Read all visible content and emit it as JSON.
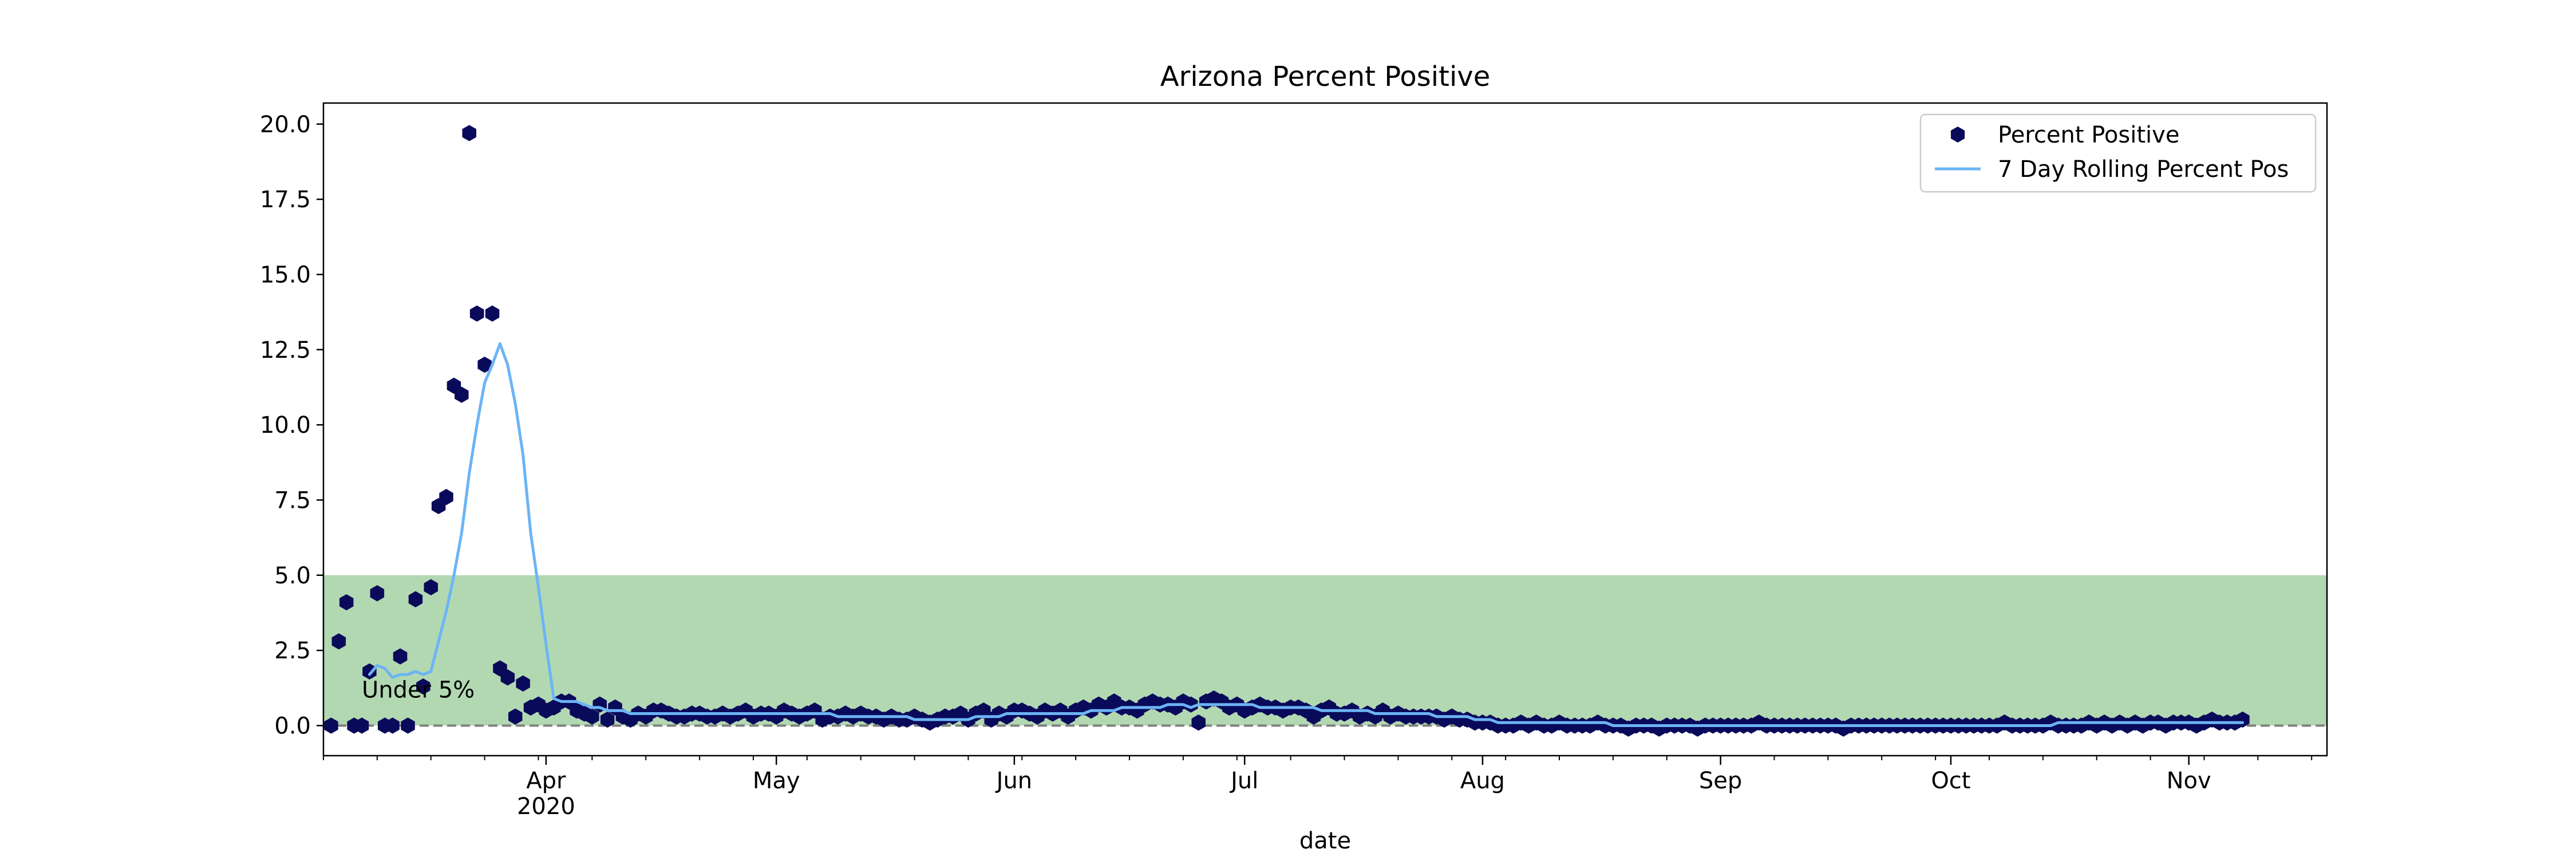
{
  "chart_data": {
    "type": "scatter",
    "title": "Arizona Percent Positive",
    "xlabel": "date",
    "ylabel": "",
    "xlim": [
      "2020-03-03",
      "2020-11-19"
    ],
    "ylim": [
      -1.0,
      20.7
    ],
    "grid": false,
    "legend_position": "top-right",
    "x_ticks": [
      {
        "date": "2020-04-01",
        "label": "Apr",
        "sublabel": "2020"
      },
      {
        "date": "2020-05-01",
        "label": "May"
      },
      {
        "date": "2020-06-01",
        "label": "Jun"
      },
      {
        "date": "2020-07-01",
        "label": "Jul"
      },
      {
        "date": "2020-08-01",
        "label": "Aug"
      },
      {
        "date": "2020-09-01",
        "label": "Sep"
      },
      {
        "date": "2020-10-01",
        "label": "Oct"
      },
      {
        "date": "2020-11-01",
        "label": "Nov"
      }
    ],
    "y_ticks": [
      0.0,
      2.5,
      5.0,
      7.5,
      10.0,
      12.5,
      15.0,
      17.5,
      20.0
    ],
    "y_tick_labels": [
      "0.0",
      "2.5",
      "5.0",
      "7.5",
      "10.0",
      "12.5",
      "15.0",
      "17.5",
      "20.0"
    ],
    "band": {
      "y_from": 0,
      "y_to": 5,
      "color": "#b2d8b2",
      "label": "Under 5%",
      "label_date": "2020-03-08",
      "label_y": 1.2
    },
    "reference_line": {
      "y": 0,
      "color": "#808080",
      "style": "dashed"
    },
    "series": [
      {
        "name": "Percent Positive",
        "kind": "scatter",
        "color": "#0a0a5a",
        "marker": "hexagon",
        "x_start": "2020-03-04",
        "step_days": 1,
        "values": [
          0.0,
          2.8,
          4.1,
          0.0,
          0.0,
          1.8,
          4.4,
          0.0,
          0.0,
          2.3,
          0.0,
          4.2,
          1.3,
          4.6,
          7.3,
          7.6,
          11.3,
          11.0,
          19.7,
          13.7,
          12.0,
          13.7,
          1.9,
          1.6,
          0.3,
          1.4,
          0.6,
          0.7,
          0.5,
          0.6,
          0.8,
          0.8,
          0.5,
          0.4,
          0.3,
          0.7,
          0.2,
          0.6,
          0.3,
          0.2,
          0.4,
          0.3,
          0.5,
          0.5,
          0.4,
          0.3,
          0.3,
          0.4,
          0.4,
          0.3,
          0.3,
          0.4,
          0.3,
          0.4,
          0.5,
          0.3,
          0.4,
          0.4,
          0.3,
          0.5,
          0.4,
          0.3,
          0.4,
          0.5,
          0.2,
          0.3,
          0.3,
          0.4,
          0.3,
          0.4,
          0.3,
          0.3,
          0.2,
          0.3,
          0.2,
          0.2,
          0.3,
          0.2,
          0.1,
          0.2,
          0.3,
          0.3,
          0.4,
          0.2,
          0.4,
          0.5,
          0.2,
          0.4,
          0.3,
          0.5,
          0.5,
          0.4,
          0.3,
          0.5,
          0.4,
          0.5,
          0.3,
          0.5,
          0.6,
          0.5,
          0.7,
          0.6,
          0.8,
          0.6,
          0.6,
          0.5,
          0.7,
          0.8,
          0.7,
          0.7,
          0.6,
          0.8,
          0.7,
          0.1,
          0.8,
          0.9,
          0.8,
          0.6,
          0.7,
          0.5,
          0.6,
          0.7,
          0.6,
          0.6,
          0.5,
          0.6,
          0.6,
          0.5,
          0.3,
          0.5,
          0.6,
          0.4,
          0.4,
          0.5,
          0.3,
          0.4,
          0.3,
          0.5,
          0.3,
          0.4,
          0.3,
          0.3,
          0.3,
          0.3,
          0.3,
          0.2,
          0.3,
          0.2,
          0.2,
          0.1,
          0.1,
          0.1,
          0.0,
          0.0,
          0.0,
          0.1,
          0.0,
          0.1,
          0.0,
          0.0,
          0.1,
          0.0,
          0.0,
          0.0,
          0.0,
          0.1,
          0.0,
          0.0,
          0.0,
          -0.1,
          0.0,
          0.0,
          0.0,
          -0.1,
          0.0,
          0.0,
          0.0,
          0.0,
          -0.1,
          0.0,
          0.0,
          0.0,
          0.0,
          0.0,
          0.0,
          0.0,
          0.1,
          0.0,
          0.0,
          0.0,
          0.0,
          0.0,
          0.0,
          0.0,
          0.0,
          0.0,
          0.0,
          -0.1,
          0.0,
          0.0,
          0.0,
          0.0,
          0.0,
          0.0,
          0.0,
          0.0,
          0.0,
          0.0,
          0.0,
          0.0,
          0.0,
          0.0,
          0.0,
          0.0,
          0.0,
          0.0,
          0.0,
          0.0,
          0.1,
          0.0,
          0.0,
          0.0,
          0.0,
          0.0,
          0.1,
          0.0,
          0.0,
          0.0,
          0.0,
          0.1,
          0.0,
          0.1,
          0.0,
          0.1,
          0.0,
          0.1,
          0.0,
          0.1,
          0.1,
          0.0,
          0.1,
          0.1,
          0.1,
          0.0,
          0.1,
          0.2,
          0.1,
          0.1,
          0.1,
          0.2
        ]
      },
      {
        "name": "7 Day Rolling Percent Pos",
        "kind": "line",
        "color": "#6cb4f5",
        "x_start": "2020-03-09",
        "step_days": 1,
        "values": [
          1.7,
          2.0,
          1.9,
          1.6,
          1.7,
          1.7,
          1.8,
          1.7,
          1.8,
          2.8,
          3.8,
          5.0,
          6.4,
          8.4,
          10.0,
          11.4,
          12.0,
          12.7,
          12.0,
          10.7,
          9.0,
          6.4,
          4.6,
          2.7,
          0.9,
          0.8,
          0.8,
          0.8,
          0.7,
          0.6,
          0.6,
          0.5,
          0.5,
          0.5,
          0.4,
          0.4,
          0.4,
          0.4,
          0.4,
          0.4,
          0.4,
          0.4,
          0.4,
          0.4,
          0.4,
          0.4,
          0.4,
          0.4,
          0.4,
          0.4,
          0.4,
          0.4,
          0.4,
          0.4,
          0.4,
          0.4,
          0.4,
          0.4,
          0.4,
          0.4,
          0.4,
          0.3,
          0.3,
          0.3,
          0.3,
          0.3,
          0.3,
          0.3,
          0.3,
          0.3,
          0.3,
          0.2,
          0.2,
          0.2,
          0.2,
          0.2,
          0.2,
          0.2,
          0.2,
          0.3,
          0.3,
          0.3,
          0.3,
          0.4,
          0.4,
          0.4,
          0.4,
          0.4,
          0.4,
          0.4,
          0.4,
          0.4,
          0.4,
          0.4,
          0.5,
          0.5,
          0.5,
          0.5,
          0.6,
          0.6,
          0.6,
          0.6,
          0.6,
          0.6,
          0.7,
          0.7,
          0.7,
          0.6,
          0.7,
          0.7,
          0.7,
          0.7,
          0.7,
          0.7,
          0.7,
          0.7,
          0.6,
          0.6,
          0.6,
          0.6,
          0.6,
          0.6,
          0.6,
          0.6,
          0.5,
          0.5,
          0.5,
          0.5,
          0.5,
          0.5,
          0.5,
          0.4,
          0.4,
          0.4,
          0.4,
          0.4,
          0.4,
          0.4,
          0.4,
          0.3,
          0.3,
          0.3,
          0.3,
          0.3,
          0.2,
          0.2,
          0.2,
          0.1,
          0.1,
          0.1,
          0.1,
          0.1,
          0.1,
          0.1,
          0.1,
          0.1,
          0.1,
          0.1,
          0.1,
          0.1,
          0.1,
          0.1,
          0.0,
          0.0,
          0.0,
          0.0,
          0.0,
          0.0,
          0.0,
          0.0,
          0.0,
          0.0,
          0.0,
          0.0,
          0.0,
          0.0,
          0.0,
          0.0,
          0.0,
          0.0,
          0.0,
          0.0,
          0.0,
          0.0,
          0.0,
          0.0,
          0.0,
          0.0,
          0.0,
          0.0,
          0.0,
          0.0,
          0.0,
          0.0,
          0.0,
          0.0,
          0.0,
          0.0,
          0.0,
          0.0,
          0.0,
          0.0,
          0.0,
          0.0,
          0.0,
          0.0,
          0.0,
          0.0,
          0.0,
          0.0,
          0.0,
          0.0,
          0.0,
          0.0,
          0.0,
          0.0,
          0.0,
          0.0,
          0.0,
          0.0,
          0.1,
          0.1,
          0.1,
          0.1,
          0.1,
          0.1,
          0.1,
          0.1,
          0.1,
          0.1,
          0.1,
          0.1,
          0.1,
          0.1,
          0.1,
          0.1,
          0.1,
          0.1,
          0.1,
          0.1,
          0.1,
          0.1,
          0.1,
          0.1,
          0.1
        ]
      }
    ]
  }
}
